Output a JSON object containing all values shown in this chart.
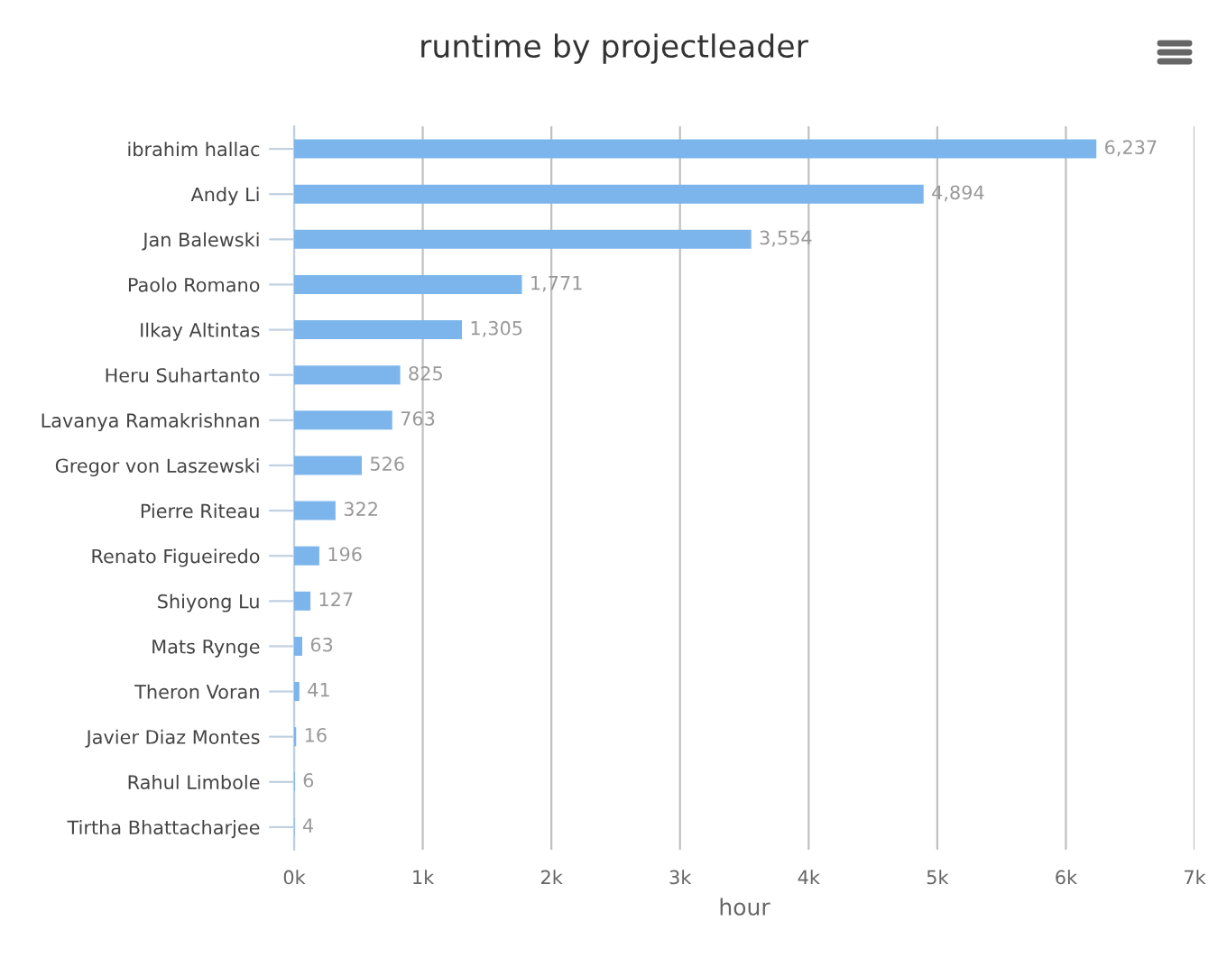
{
  "chart_data": {
    "type": "bar",
    "orientation": "horizontal",
    "title": "runtime by projectleader",
    "xlabel": "hour",
    "categories": [
      "ibrahim hallac",
      "Andy Li",
      "Jan Balewski",
      "Paolo Romano",
      "Ilkay Altintas",
      "Heru Suhartanto",
      "Lavanya Ramakrishnan",
      "Gregor von Laszewski",
      "Pierre Riteau",
      "Renato Figueiredo",
      "Shiyong Lu",
      "Mats Rynge",
      "Theron Voran",
      "Javier Diaz Montes",
      "Rahul Limbole",
      "Tirtha Bhattacharjee"
    ],
    "values": [
      6237,
      4894,
      3554,
      1771,
      1305,
      825,
      763,
      526,
      322,
      196,
      127,
      63,
      41,
      16,
      6,
      4
    ],
    "value_labels": [
      "6,237",
      "4,894",
      "3,554",
      "1,771",
      "1,305",
      "825",
      "763",
      "526",
      "322",
      "196",
      "127",
      "63",
      "41",
      "16",
      "6",
      "4"
    ],
    "color": "#7cb5ec",
    "xlim": [
      0,
      7000
    ],
    "xticks": [
      {
        "value": 0,
        "label": "0k"
      },
      {
        "value": 1000,
        "label": "1k"
      },
      {
        "value": 2000,
        "label": "2k"
      },
      {
        "value": 3000,
        "label": "3k"
      },
      {
        "value": 4000,
        "label": "4k"
      },
      {
        "value": 5000,
        "label": "5k"
      },
      {
        "value": 6000,
        "label": "6k"
      },
      {
        "value": 7000,
        "label": "7k"
      }
    ],
    "grid": "x",
    "legend": false
  }
}
